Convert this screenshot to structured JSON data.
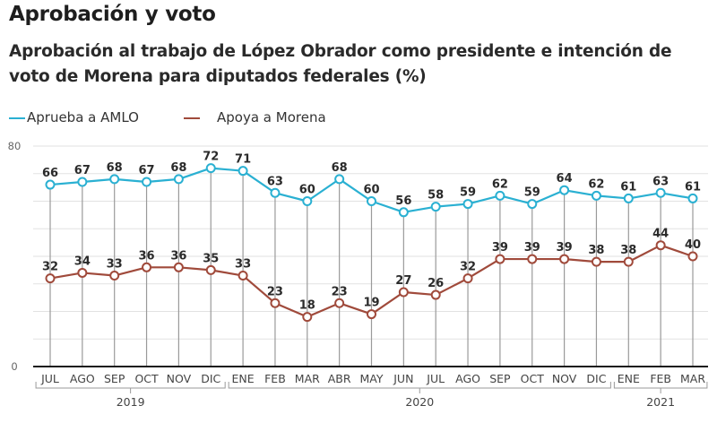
{
  "header": {
    "title": "Aprobación y voto",
    "subtitle": "Aprobación al trabajo de López Obrador como presidente e intención de voto de Morena para diputados federales (%)"
  },
  "chart_data": {
    "type": "line",
    "title": "Aprobación y voto",
    "subtitle": "Aprobación al trabajo de López Obrador como presidente e intención de voto de Morena para diputados federales (%)",
    "xlabel": "",
    "ylabel": "",
    "ylim": [
      0,
      80
    ],
    "yticks_labeled": [
      0,
      80
    ],
    "grid_step": 10,
    "grid": true,
    "legend_position": "top-left",
    "categories": [
      "JUL",
      "AGO",
      "SEP",
      "OCT",
      "NOV",
      "DIC",
      "ENE",
      "FEB",
      "MAR",
      "ABR",
      "MAY",
      "JUN",
      "JUL",
      "AGO",
      "SEP",
      "OCT",
      "NOV",
      "DIC",
      "ENE",
      "FEB",
      "MAR"
    ],
    "year_groups": [
      {
        "label": "2019",
        "start": 0,
        "end": 5
      },
      {
        "label": "2020",
        "start": 6,
        "end": 17
      },
      {
        "label": "2021",
        "start": 18,
        "end": 20
      }
    ],
    "series": [
      {
        "name": "Aprueba a AMLO",
        "color": "#2ab0d2",
        "values": [
          66,
          67,
          68,
          67,
          68,
          72,
          71,
          63,
          60,
          68,
          60,
          56,
          58,
          59,
          62,
          59,
          64,
          62,
          61,
          63,
          61
        ]
      },
      {
        "name": "Apoya a Morena",
        "color": "#a04a3b",
        "values": [
          32,
          34,
          33,
          36,
          36,
          35,
          33,
          23,
          18,
          23,
          19,
          27,
          26,
          32,
          39,
          39,
          39,
          38,
          38,
          44,
          40
        ]
      }
    ]
  }
}
